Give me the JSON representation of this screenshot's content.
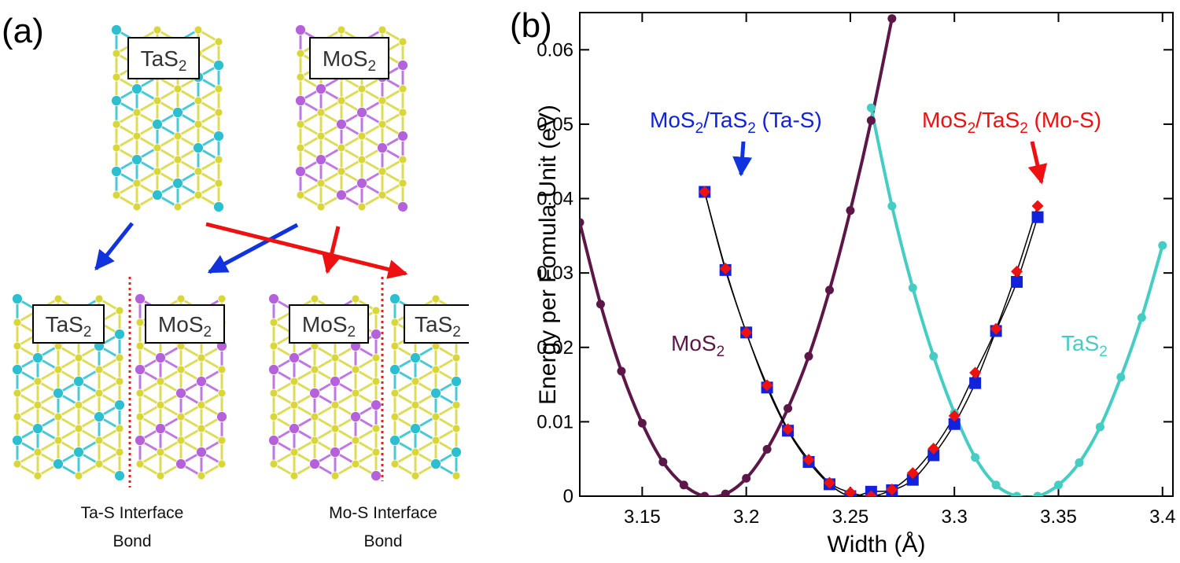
{
  "panel_a": {
    "label": "(a)",
    "top_blocks": [
      {
        "formula": "TaS",
        "sub": "2"
      },
      {
        "formula": "MoS",
        "sub": "2"
      }
    ],
    "bottom_blocks": [
      {
        "formula": "TaS",
        "sub": "2"
      },
      {
        "formula": "MoS",
        "sub": "2"
      },
      {
        "formula": "MoS",
        "sub": "2"
      },
      {
        "formula": "TaS",
        "sub": "2"
      }
    ],
    "captions": [
      {
        "line1": "Ta-S Interface",
        "line2": "Bond"
      },
      {
        "line1": "Mo-S Interface",
        "line2": "Bond"
      }
    ],
    "colors": {
      "ta": "#2cbfcf",
      "mo": "#b561dc",
      "s": "#d9d63a",
      "blue_arrow": "#1133dd",
      "red_arrow": "#ee1111",
      "interface": "#dd2222"
    }
  },
  "chart_data": {
    "panel_label": "(b)",
    "type": "scatter",
    "xlabel": "Width (Å)",
    "ylabel": "Energy per Fomula Unit (eV)",
    "xlim": [
      3.12,
      3.405
    ],
    "ylim": [
      0,
      0.065
    ],
    "xticks": [
      "3.15",
      "3.2",
      "3.25",
      "3.3",
      "3.35",
      "3.4"
    ],
    "xtick_values": [
      3.15,
      3.2,
      3.25,
      3.3,
      3.35,
      3.4
    ],
    "yticks": [
      "0",
      "0.01",
      "0.02",
      "0.03",
      "0.04",
      "0.05",
      "0.06"
    ],
    "ytick_values": [
      0,
      0.01,
      0.02,
      0.03,
      0.04,
      0.05,
      0.06
    ],
    "series": [
      {
        "name": "MoS2",
        "label": {
          "main": "MoS",
          "sub": "2"
        },
        "color": "#5c1748",
        "marker": "circle",
        "x": [
          3.12,
          3.13,
          3.14,
          3.15,
          3.16,
          3.17,
          3.18,
          3.19,
          3.2,
          3.21,
          3.22,
          3.23,
          3.24,
          3.25,
          3.26,
          3.27
        ],
        "y": [
          0.0368,
          0.0258,
          0.0168,
          0.0098,
          0.0046,
          0.0015,
          0.0,
          0.0003,
          0.0024,
          0.0063,
          0.0118,
          0.0188,
          0.0277,
          0.0384,
          0.0505,
          0.0642
        ]
      },
      {
        "name": "TaS2",
        "label": {
          "main": "TaS",
          "sub": "2"
        },
        "color": "#45cdc4",
        "marker": "circle",
        "x": [
          3.26,
          3.27,
          3.28,
          3.29,
          3.3,
          3.31,
          3.32,
          3.33,
          3.34,
          3.35,
          3.36,
          3.37,
          3.38,
          3.39,
          3.4
        ],
        "y": [
          0.0522,
          0.039,
          0.028,
          0.0188,
          0.0112,
          0.0052,
          0.0015,
          0.0,
          0.0,
          0.0015,
          0.0045,
          0.0093,
          0.016,
          0.024,
          0.0337
        ]
      },
      {
        "name": "MoS2/TaS2 (Ta-S)",
        "label": {
          "a": "MoS",
          "sa": "2",
          "b": "/TaS",
          "sb": "2",
          "c": " (Ta-S)"
        },
        "color": "#1122dd",
        "marker": "square",
        "x": [
          3.18,
          3.19,
          3.2,
          3.21,
          3.22,
          3.23,
          3.24,
          3.25,
          3.26,
          3.27,
          3.28,
          3.29,
          3.3,
          3.31,
          3.32,
          3.33,
          3.34
        ],
        "y": [
          0.0409,
          0.0304,
          0.022,
          0.0146,
          0.0088,
          0.0046,
          0.0016,
          0.0,
          0.0006,
          0.0008,
          0.0022,
          0.0055,
          0.0097,
          0.0152,
          0.0222,
          0.0288,
          0.0375
        ]
      },
      {
        "name": "MoS2/TaS2 (Mo-S)",
        "label": {
          "a": "MoS",
          "sa": "2",
          "b": "/TaS",
          "sb": "2",
          "c": " (Mo-S)"
        },
        "color": "#ee1111",
        "marker": "diamond",
        "x": [
          3.18,
          3.19,
          3.2,
          3.21,
          3.22,
          3.23,
          3.24,
          3.25,
          3.26,
          3.27,
          3.28,
          3.29,
          3.3,
          3.31,
          3.32,
          3.33,
          3.34
        ],
        "y": [
          0.0409,
          0.0306,
          0.022,
          0.0149,
          0.009,
          0.0049,
          0.0018,
          0.0005,
          0.0,
          0.0009,
          0.0031,
          0.0064,
          0.0108,
          0.0166,
          0.0225,
          0.0302,
          0.039
        ]
      }
    ]
  }
}
